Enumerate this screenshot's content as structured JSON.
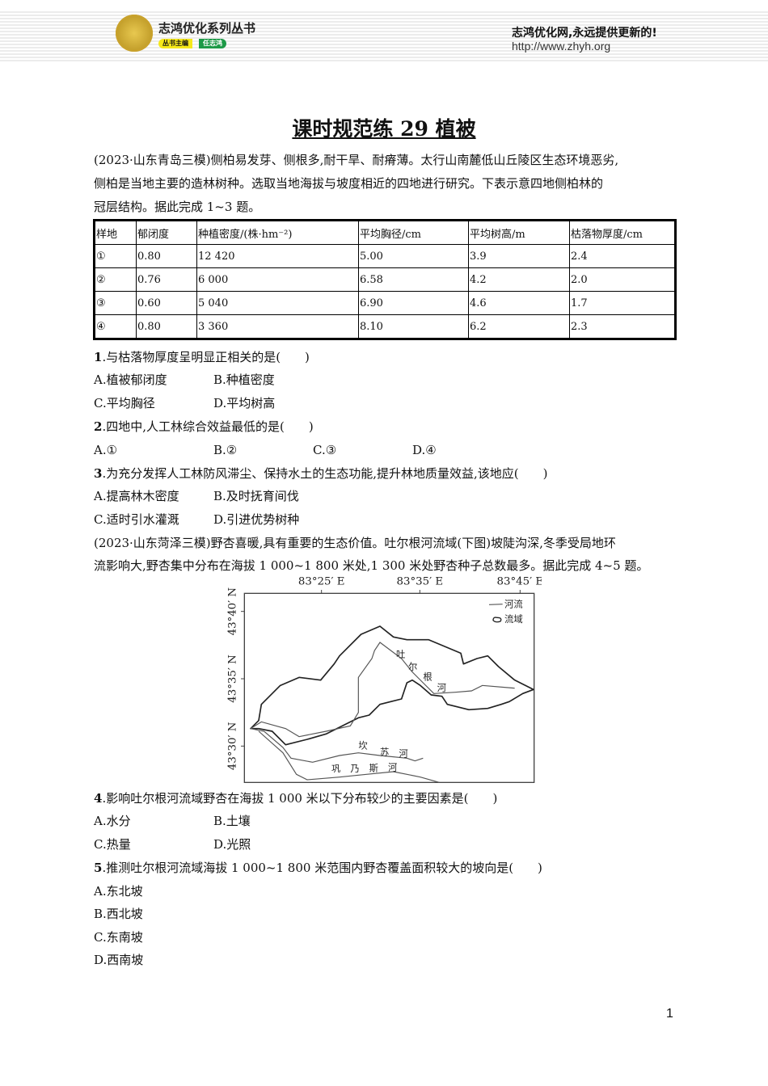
{
  "header": {
    "brand": "志鸿优化系列丛书",
    "editor_label": "丛书主编",
    "editor_name": "任志鸿",
    "slogan": "志鸿优化网,永远提供更新的!",
    "url": "http://www.zhyh.org"
  },
  "title": "课时规范练 29 植被",
  "intro1": [
    "(2023·山东青岛三模)侧柏易发芽、侧根多,耐干旱、耐瘠薄。太行山南麓低山丘陵区生态环境恶劣,",
    "侧柏是当地主要的造林树种。选取当地海拔与坡度相近的四地进行研究。下表示意四地侧柏林的",
    "冠层结构。据此完成 1~3 题。"
  ],
  "table": {
    "headers": [
      "样地",
      "郁闭度",
      "种植密度/(株·hm⁻²)",
      "平均胸径/cm",
      "平均树高/m",
      "枯落物厚度/cm"
    ],
    "rows": [
      [
        "①",
        "0.80",
        "12 420",
        "5.00",
        "3.9",
        "2.4"
      ],
      [
        "②",
        "0.76",
        "6 000",
        "6.58",
        "4.2",
        "2.0"
      ],
      [
        "③",
        "0.60",
        "5 040",
        "6.90",
        "4.6",
        "1.7"
      ],
      [
        "④",
        "0.80",
        "3 360",
        "8.10",
        "6.2",
        "2.3"
      ]
    ]
  },
  "q1": {
    "num": "1",
    "text": ".与枯落物厚度呈明显正相关的是(　　)",
    "options": [
      "A.植被郁闭度",
      "B.种植密度",
      "C.平均胸径",
      "D.平均树高"
    ]
  },
  "q2": {
    "num": "2",
    "text": ".四地中,人工林综合效益最低的是(　　)",
    "options": [
      "A.①",
      "B.②",
      "C.③",
      "D.④"
    ]
  },
  "q3": {
    "num": "3",
    "text": ".为充分发挥人工林防风滞尘、保持水土的生态功能,提升林地质量效益,该地应(　　)",
    "options": [
      "A.提高林木密度",
      "B.及时抚育间伐",
      "C.适时引水灌溉",
      "D.引进优势树种"
    ]
  },
  "intro2": [
    "(2023·山东菏泽三模)野杏喜暖,具有重要的生态价值。吐尔根河流域(下图)坡陡沟深,冬季受局地环",
    "流影响大,野杏集中分布在海拔 1 000~1 800 米处,1 300 米处野杏种子总数最多。据此完成 4~5 题。"
  ],
  "map": {
    "lon_labels": [
      "83°25′ E",
      "83°35′ E",
      "83°45′ E"
    ],
    "lat_labels": [
      "43°40′ N",
      "43°35′ N",
      "43°30′ N"
    ],
    "legend": [
      "河流",
      "流域"
    ],
    "rivers": [
      "吐",
      "尔",
      "根",
      "河"
    ],
    "kansu": [
      "坎",
      "苏",
      "河"
    ],
    "gong": [
      "巩",
      "乃",
      "斯",
      "河"
    ]
  },
  "q4": {
    "num": "4",
    "text": ".影响吐尔根河流域野杏在海拔 1 000 米以下分布较少的主要因素是(　　)",
    "options": [
      "A.水分",
      "B.土壤",
      "C.热量",
      "D.光照"
    ]
  },
  "q5": {
    "num": "5",
    "text": ".推测吐尔根河流域海拔 1 000~1 800 米范围内野杏覆盖面积较大的坡向是(　　)",
    "options": [
      "A.东北坡",
      "B.西北坡",
      "C.东南坡",
      "D.西南坡"
    ]
  },
  "page_number": "1"
}
